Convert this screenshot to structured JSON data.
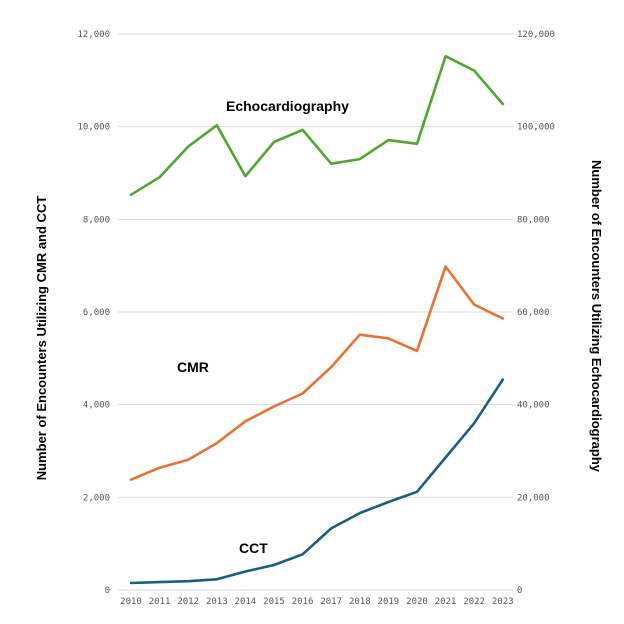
{
  "chart_data": {
    "type": "line",
    "x": [
      2010,
      2011,
      2012,
      2013,
      2014,
      2015,
      2016,
      2017,
      2018,
      2019,
      2020,
      2021,
      2022,
      2023
    ],
    "x_tick_labels": [
      "2010",
      "2011",
      "2012",
      "2013",
      "2014",
      "2015",
      "2016",
      "2017",
      "2018",
      "2019",
      "2020",
      "2021",
      "2022",
      "2023"
    ],
    "ylabel_left": "Number of Encounters Utilizing CMR and CCT",
    "ylabel_right": "Number of Encounters Utilizing Echocardiography",
    "ylim_left": [
      0,
      12000
    ],
    "ylim_right": [
      0,
      120000
    ],
    "yticks_left": [
      "0",
      "2,000",
      "4,000",
      "6,000",
      "8,000",
      "10,000",
      "12,000"
    ],
    "yticks_right": [
      "0",
      "20,000",
      "40,000",
      "60,000",
      "80,000",
      "100,000",
      "120,000"
    ],
    "grid": true,
    "series": [
      {
        "name": "Echocardiography",
        "axis": "right",
        "color": "#4ea72e",
        "values": [
          85300,
          89100,
          95700,
          100300,
          89300,
          96700,
          99300,
          92000,
          93000,
          97100,
          96300,
          115200,
          112100,
          104900
        ]
      },
      {
        "name": "CMR",
        "axis": "left",
        "color": "#e97132",
        "values": [
          2380,
          2640,
          2810,
          3170,
          3640,
          3960,
          4240,
          4810,
          5510,
          5430,
          5160,
          6980,
          6160,
          5860
        ]
      },
      {
        "name": "CCT",
        "axis": "left",
        "color": "#175f7e",
        "values": [
          150,
          170,
          190,
          230,
          400,
          540,
          770,
          1330,
          1660,
          1900,
          2120,
          2860,
          3600,
          4540
        ]
      }
    ]
  }
}
